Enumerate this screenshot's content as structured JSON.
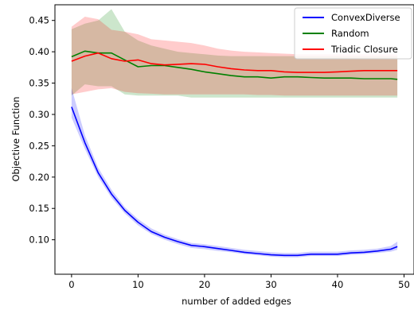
{
  "chart_data": {
    "type": "line",
    "xlabel": "number of added edges",
    "ylabel": "Objective Function",
    "xlim": [
      -2.5,
      51.5
    ],
    "ylim": [
      0.045,
      0.475
    ],
    "xticks": [
      0,
      10,
      20,
      30,
      40,
      50
    ],
    "yticks": [
      0.1,
      0.15,
      0.2,
      0.25,
      0.3,
      0.35,
      0.4,
      0.45
    ],
    "xtick_labels": [
      "0",
      "10",
      "20",
      "30",
      "40",
      "50"
    ],
    "ytick_labels": [
      "0.10",
      "0.15",
      "0.20",
      "0.25",
      "0.30",
      "0.35",
      "0.40",
      "0.45"
    ],
    "grid": false,
    "legend_position": "top-right",
    "x": [
      0,
      2,
      4,
      6,
      8,
      10,
      12,
      14,
      16,
      18,
      20,
      22,
      24,
      26,
      28,
      30,
      32,
      34,
      36,
      38,
      40,
      42,
      44,
      46,
      48,
      49
    ],
    "series": [
      {
        "name": "ConvexDiverse",
        "color": "#0000ff",
        "values": [
          0.312,
          0.255,
          0.207,
          0.173,
          0.147,
          0.128,
          0.113,
          0.104,
          0.097,
          0.091,
          0.089,
          0.086,
          0.083,
          0.08,
          0.078,
          0.076,
          0.075,
          0.075,
          0.077,
          0.077,
          0.077,
          0.079,
          0.08,
          0.082,
          0.085,
          0.089
        ],
        "lower": [
          0.295,
          0.245,
          0.2,
          0.167,
          0.142,
          0.123,
          0.109,
          0.1,
          0.093,
          0.087,
          0.085,
          0.082,
          0.08,
          0.077,
          0.075,
          0.073,
          0.072,
          0.072,
          0.074,
          0.074,
          0.074,
          0.076,
          0.077,
          0.079,
          0.081,
          0.084
        ],
        "upper": [
          0.342,
          0.267,
          0.215,
          0.18,
          0.152,
          0.133,
          0.118,
          0.108,
          0.101,
          0.095,
          0.093,
          0.09,
          0.087,
          0.084,
          0.082,
          0.08,
          0.079,
          0.079,
          0.081,
          0.081,
          0.081,
          0.083,
          0.084,
          0.086,
          0.09,
          0.097
        ]
      },
      {
        "name": "Random",
        "color": "#008000",
        "values": [
          0.392,
          0.401,
          0.398,
          0.398,
          0.387,
          0.376,
          0.378,
          0.378,
          0.375,
          0.372,
          0.368,
          0.365,
          0.362,
          0.36,
          0.36,
          0.358,
          0.36,
          0.36,
          0.359,
          0.358,
          0.358,
          0.358,
          0.357,
          0.357,
          0.357,
          0.356
        ],
        "lower": [
          0.33,
          0.348,
          0.345,
          0.345,
          0.332,
          0.33,
          0.33,
          0.33,
          0.33,
          0.327,
          0.327,
          0.327,
          0.327,
          0.327,
          0.327,
          0.327,
          0.327,
          0.327,
          0.327,
          0.327,
          0.327,
          0.327,
          0.327,
          0.327,
          0.327,
          0.327
        ],
        "upper": [
          0.436,
          0.445,
          0.45,
          0.468,
          0.432,
          0.418,
          0.41,
          0.405,
          0.4,
          0.398,
          0.396,
          0.394,
          0.393,
          0.393,
          0.393,
          0.393,
          0.393,
          0.393,
          0.393,
          0.393,
          0.393,
          0.393,
          0.393,
          0.393,
          0.393,
          0.393
        ]
      },
      {
        "name": "Triadic Closure",
        "color": "#ff0000",
        "values": [
          0.385,
          0.393,
          0.398,
          0.389,
          0.385,
          0.387,
          0.381,
          0.379,
          0.38,
          0.381,
          0.38,
          0.376,
          0.373,
          0.371,
          0.37,
          0.37,
          0.368,
          0.367,
          0.367,
          0.367,
          0.368,
          0.369,
          0.37,
          0.37,
          0.37,
          0.37
        ],
        "lower": [
          0.332,
          0.336,
          0.34,
          0.342,
          0.336,
          0.334,
          0.333,
          0.332,
          0.332,
          0.332,
          0.332,
          0.332,
          0.332,
          0.332,
          0.331,
          0.331,
          0.33,
          0.33,
          0.33,
          0.33,
          0.33,
          0.33,
          0.33,
          0.33,
          0.33,
          0.33
        ],
        "upper": [
          0.44,
          0.456,
          0.452,
          0.435,
          0.432,
          0.428,
          0.42,
          0.418,
          0.416,
          0.414,
          0.41,
          0.405,
          0.402,
          0.4,
          0.399,
          0.398,
          0.397,
          0.396,
          0.396,
          0.396,
          0.396,
          0.396,
          0.396,
          0.396,
          0.396,
          0.396
        ]
      }
    ]
  }
}
